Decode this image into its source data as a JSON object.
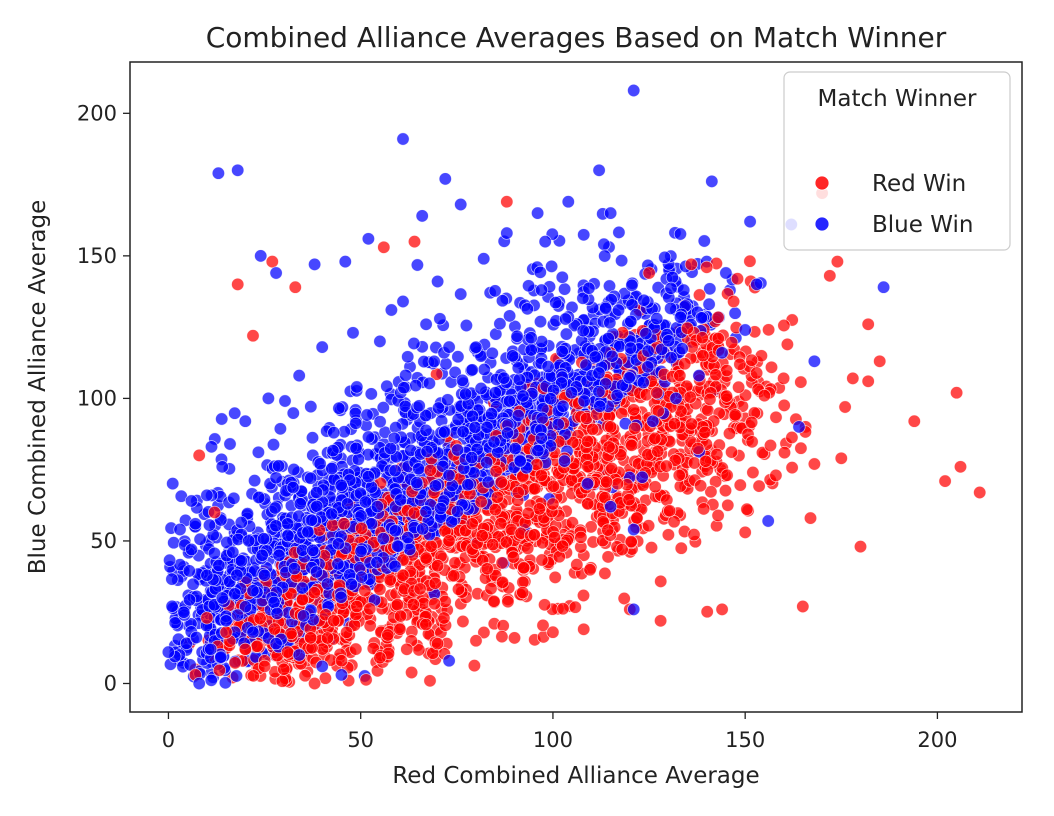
{
  "chart_data": {
    "type": "scatter",
    "title": "Combined Alliance Averages Based on Match Winner",
    "xlabel": "Red Combined Alliance Average",
    "ylabel": "Blue Combined Alliance Average",
    "xlim": [
      -10,
      222
    ],
    "ylim": [
      -10,
      218
    ],
    "x_ticks": [
      0,
      50,
      100,
      150,
      200
    ],
    "y_ticks": [
      0,
      50,
      100,
      150,
      200
    ],
    "x_tick_labels": [
      "0",
      "50",
      "100",
      "150",
      "200"
    ],
    "y_tick_labels": [
      "0",
      "50",
      "100",
      "150",
      "200"
    ],
    "grid": false,
    "legend": {
      "title": "Match Winner",
      "placement": "top-right",
      "entries": [
        "Red Win",
        "Blue Win"
      ]
    },
    "series": [
      {
        "name": "Red Win",
        "color": "#ff0000",
        "cluster": {
          "count": 2300,
          "x_range": [
            5,
            160
          ],
          "y_range": [
            0,
            140
          ],
          "note_points": "sampled distribution; red wins lie mostly where x > y"
        },
        "points": [
          [
            211,
            67
          ],
          [
            206,
            76
          ],
          [
            205,
            102
          ],
          [
            202,
            71
          ],
          [
            194,
            92
          ],
          [
            185,
            113
          ],
          [
            182,
            126
          ],
          [
            180,
            48
          ],
          [
            178,
            107
          ],
          [
            176,
            97
          ],
          [
            175,
            79
          ],
          [
            174,
            148
          ],
          [
            172,
            143
          ],
          [
            170,
            172
          ],
          [
            165,
            27
          ],
          [
            167,
            58
          ],
          [
            168,
            77
          ],
          [
            160,
            107
          ],
          [
            158,
            73
          ],
          [
            155,
            101
          ],
          [
            152,
            74
          ],
          [
            150,
            53
          ],
          [
            144,
            26
          ],
          [
            128,
            22
          ],
          [
            120,
            26
          ],
          [
            118,
            47
          ],
          [
            108,
            19
          ],
          [
            100,
            18
          ],
          [
            90,
            16
          ],
          [
            80,
            15
          ],
          [
            70,
            14
          ],
          [
            62,
            12
          ],
          [
            55,
            9
          ],
          [
            45,
            8
          ],
          [
            38,
            0
          ],
          [
            30,
            5
          ],
          [
            25,
            8
          ],
          [
            20,
            12
          ],
          [
            15,
            18
          ],
          [
            10,
            23
          ],
          [
            8,
            80
          ],
          [
            7,
            3
          ],
          [
            18,
            140
          ],
          [
            27,
            148
          ],
          [
            33,
            139
          ],
          [
            22,
            122
          ],
          [
            12,
            60
          ],
          [
            64,
            155
          ],
          [
            56,
            153
          ],
          [
            88,
            169
          ],
          [
            125,
            144
          ],
          [
            140,
            146
          ],
          [
            148,
            142
          ],
          [
            136,
            147
          ],
          [
            182,
            106
          ],
          [
            147,
            134
          ],
          [
            143,
            121
          ],
          [
            139,
            115
          ],
          [
            133,
            108
          ],
          [
            127,
            102
          ],
          [
            121,
            96
          ],
          [
            115,
            90
          ],
          [
            109,
            85
          ],
          [
            103,
            79
          ],
          [
            97,
            73
          ],
          [
            91,
            67
          ],
          [
            85,
            61
          ],
          [
            79,
            56
          ],
          [
            73,
            50
          ],
          [
            67,
            44
          ],
          [
            61,
            38
          ],
          [
            55,
            33
          ],
          [
            49,
            27
          ],
          [
            43,
            22
          ],
          [
            37,
            16
          ],
          [
            31,
            11
          ],
          [
            25,
            6
          ]
        ]
      },
      {
        "name": "Blue Win",
        "color": "#0000ff",
        "cluster": {
          "count": 2600,
          "x_range": [
            0,
            150
          ],
          "y_range": [
            0,
            210
          ],
          "note_points": "sampled distribution; blue wins lie mostly where y > x"
        },
        "points": [
          [
            121,
            208
          ],
          [
            61,
            191
          ],
          [
            13,
            179
          ],
          [
            18,
            180
          ],
          [
            72,
            177
          ],
          [
            112,
            180
          ],
          [
            104,
            169
          ],
          [
            96,
            165
          ],
          [
            88,
            158
          ],
          [
            76,
            168
          ],
          [
            66,
            164
          ],
          [
            52,
            156
          ],
          [
            46,
            148
          ],
          [
            38,
            147
          ],
          [
            28,
            144
          ],
          [
            24,
            150
          ],
          [
            0,
            11
          ],
          [
            3,
            54
          ],
          [
            6,
            64
          ],
          [
            8,
            0
          ],
          [
            4,
            25
          ],
          [
            6,
            47
          ],
          [
            11,
            12
          ],
          [
            15,
            22
          ],
          [
            19,
            43
          ],
          [
            25,
            38
          ],
          [
            31,
            56
          ],
          [
            37,
            72
          ],
          [
            43,
            88
          ],
          [
            49,
            104
          ],
          [
            55,
            120
          ],
          [
            61,
            134
          ],
          [
            67,
            126
          ],
          [
            73,
            118
          ],
          [
            79,
            110
          ],
          [
            85,
            102
          ],
          [
            91,
            94
          ],
          [
            97,
            86
          ],
          [
            103,
            78
          ],
          [
            109,
            70
          ],
          [
            115,
            62
          ],
          [
            121,
            54
          ],
          [
            126,
            92
          ],
          [
            132,
            100
          ],
          [
            138,
            108
          ],
          [
            144,
            116
          ],
          [
            150,
            124
          ],
          [
            156,
            57
          ],
          [
            164,
            90
          ],
          [
            168,
            113
          ],
          [
            186,
            139
          ],
          [
            162,
            161
          ],
          [
            153,
            140
          ],
          [
            145,
            144
          ],
          [
            127,
            128
          ],
          [
            134,
            138
          ],
          [
            115,
            165
          ],
          [
            98,
            155
          ],
          [
            82,
            149
          ],
          [
            70,
            141
          ],
          [
            58,
            131
          ],
          [
            48,
            123
          ],
          [
            40,
            118
          ],
          [
            34,
            108
          ],
          [
            26,
            100
          ],
          [
            20,
            92
          ],
          [
            16,
            84
          ],
          [
            14,
            76
          ],
          [
            10,
            66
          ],
          [
            7,
            56
          ],
          [
            10,
            38
          ],
          [
            14,
            30
          ],
          [
            18,
            24
          ],
          [
            22,
            18
          ],
          [
            28,
            14
          ],
          [
            34,
            10
          ],
          [
            40,
            6
          ],
          [
            45,
            3
          ],
          [
            73,
            8
          ],
          [
            121,
            26
          ]
        ]
      }
    ]
  }
}
